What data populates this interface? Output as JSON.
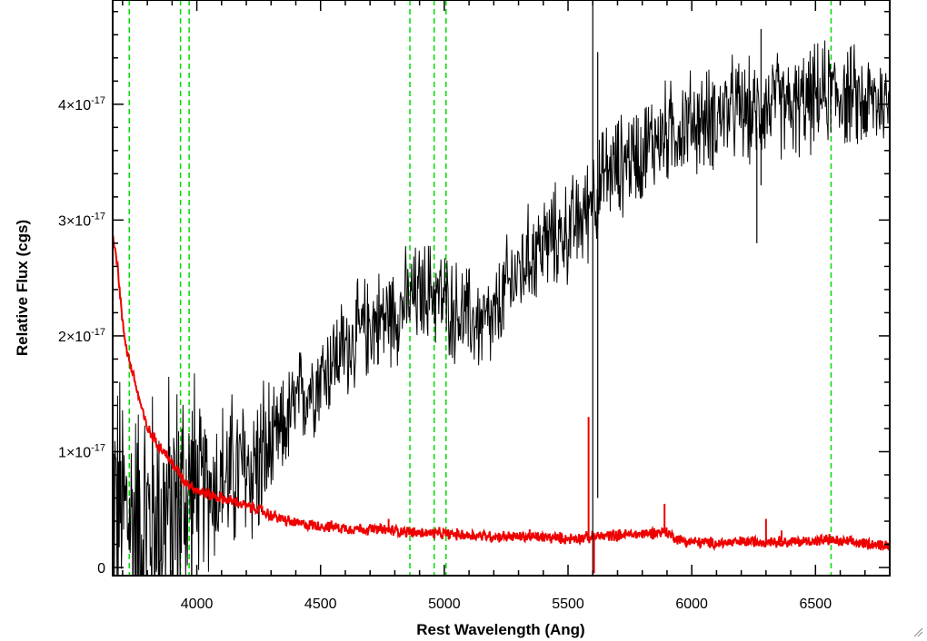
{
  "chart_data": {
    "type": "line",
    "xlabel": "Rest Wavelength (Ang)",
    "ylabel": "Relative Flux (cgs)",
    "xlim": [
      3660,
      6800
    ],
    "ylim": [
      -7e-19,
      4.9e-17
    ],
    "x_ticks": [
      {
        "value": 4000,
        "label": "4000"
      },
      {
        "value": 4500,
        "label": "4500"
      },
      {
        "value": 5000,
        "label": "5000"
      },
      {
        "value": 5500,
        "label": "5500"
      },
      {
        "value": 6000,
        "label": "6000"
      },
      {
        "value": 6500,
        "label": "6500"
      }
    ],
    "y_ticks": [
      {
        "value": 0,
        "mant": "0",
        "exp": ""
      },
      {
        "value": 1e-17,
        "mant": "1×10",
        "exp": "-17"
      },
      {
        "value": 2e-17,
        "mant": "2×10",
        "exp": "-17"
      },
      {
        "value": 3e-17,
        "mant": "3×10",
        "exp": "-17"
      },
      {
        "value": 4e-17,
        "mant": "4×10",
        "exp": "-17"
      }
    ],
    "grid": false,
    "reference_lines": {
      "color": "#00dd00",
      "style": "dashed",
      "x": [
        3727,
        3934,
        3969,
        4861,
        4959,
        5007,
        6563
      ]
    },
    "series": [
      {
        "color": "#000000",
        "noise_scale": 4.5e-18,
        "units": "1e-17",
        "x": [
          3660,
          3700,
          3750,
          3800,
          3850,
          3900,
          3950,
          4000,
          4050,
          4100,
          4150,
          4200,
          4250,
          4300,
          4350,
          4400,
          4450,
          4500,
          4550,
          4600,
          4650,
          4700,
          4750,
          4800,
          4850,
          4900,
          4950,
          5000,
          5050,
          5100,
          5150,
          5200,
          5250,
          5300,
          5350,
          5400,
          5450,
          5500,
          5550,
          5580,
          5600,
          5620,
          5650,
          5700,
          5750,
          5800,
          5850,
          5900,
          5950,
          6000,
          6050,
          6100,
          6150,
          6200,
          6250,
          6300,
          6350,
          6400,
          6450,
          6500,
          6550,
          6600,
          6650,
          6700,
          6750,
          6800
        ],
        "y": [
          0.6,
          0.5,
          0.4,
          0.4,
          0.45,
          0.5,
          0.6,
          0.65,
          0.7,
          0.75,
          0.8,
          0.85,
          0.9,
          1.0,
          1.2,
          1.4,
          1.55,
          1.65,
          1.8,
          1.9,
          2.0,
          2.1,
          2.15,
          2.2,
          2.3,
          2.35,
          2.4,
          2.3,
          2.2,
          2.15,
          2.1,
          2.1,
          2.4,
          2.55,
          2.7,
          2.8,
          2.85,
          2.9,
          3.0,
          3.1,
          3.3,
          3.2,
          3.4,
          3.45,
          3.55,
          3.6,
          3.7,
          3.75,
          3.8,
          3.85,
          3.85,
          3.9,
          3.95,
          3.95,
          3.9,
          4.0,
          4.0,
          3.95,
          4.0,
          4.05,
          4.1,
          4.1,
          4.05,
          4.0,
          4.05,
          4.0
        ]
      },
      {
        "color": "#ee0000",
        "noise_scale": 5e-19,
        "units": "1e-17",
        "x": [
          3660,
          3680,
          3700,
          3720,
          3750,
          3780,
          3800,
          3850,
          3900,
          3950,
          4000,
          4050,
          4100,
          4150,
          4200,
          4250,
          4300,
          4400,
          4500,
          4600,
          4700,
          4800,
          4900,
          5000,
          5200,
          5400,
          5500,
          5580,
          5600,
          5620,
          5700,
          5800,
          5890,
          5950,
          6000,
          6100,
          6200,
          6300,
          6400,
          6500,
          6560,
          6600,
          6700,
          6800
        ],
        "y": [
          2.9,
          2.6,
          2.1,
          1.85,
          1.6,
          1.35,
          1.2,
          1.05,
          0.9,
          0.75,
          0.67,
          0.63,
          0.6,
          0.57,
          0.53,
          0.5,
          0.45,
          0.38,
          0.36,
          0.34,
          0.33,
          0.32,
          0.3,
          0.29,
          0.27,
          0.26,
          0.25,
          0.26,
          0.26,
          0.27,
          0.28,
          0.29,
          0.31,
          0.24,
          0.22,
          0.21,
          0.22,
          0.23,
          0.22,
          0.23,
          0.24,
          0.22,
          0.21,
          0.19
        ]
      }
    ],
    "spikes": [
      {
        "series": 0,
        "x": 5600,
        "y_low": -0.05,
        "y_high": 4.9
      },
      {
        "series": 0,
        "x": 5620,
        "y_low": 0.6,
        "y_high": 4.45
      },
      {
        "series": 0,
        "x": 6263,
        "y_low": 2.8,
        "y_high": 3.8
      },
      {
        "series": 0,
        "x": 6280,
        "y_low": 3.3,
        "y_high": 4.65
      },
      {
        "series": 1,
        "x": 5583,
        "y_low": 0.26,
        "y_high": 1.3
      },
      {
        "series": 1,
        "x": 5605,
        "y_low": -0.05,
        "y_high": 0.3
      },
      {
        "series": 1,
        "x": 5890,
        "y_low": 0.3,
        "y_high": 0.55
      },
      {
        "series": 1,
        "x": 6300,
        "y_low": 0.25,
        "y_high": 0.42
      },
      {
        "series": 1,
        "x": 4775,
        "y_low": 0.33,
        "y_high": 0.42
      },
      {
        "series": 1,
        "x": 5345,
        "y_low": 0.26,
        "y_high": 0.33
      },
      {
        "series": 1,
        "x": 6363,
        "y_low": 0.22,
        "y_high": 0.32
      }
    ]
  }
}
